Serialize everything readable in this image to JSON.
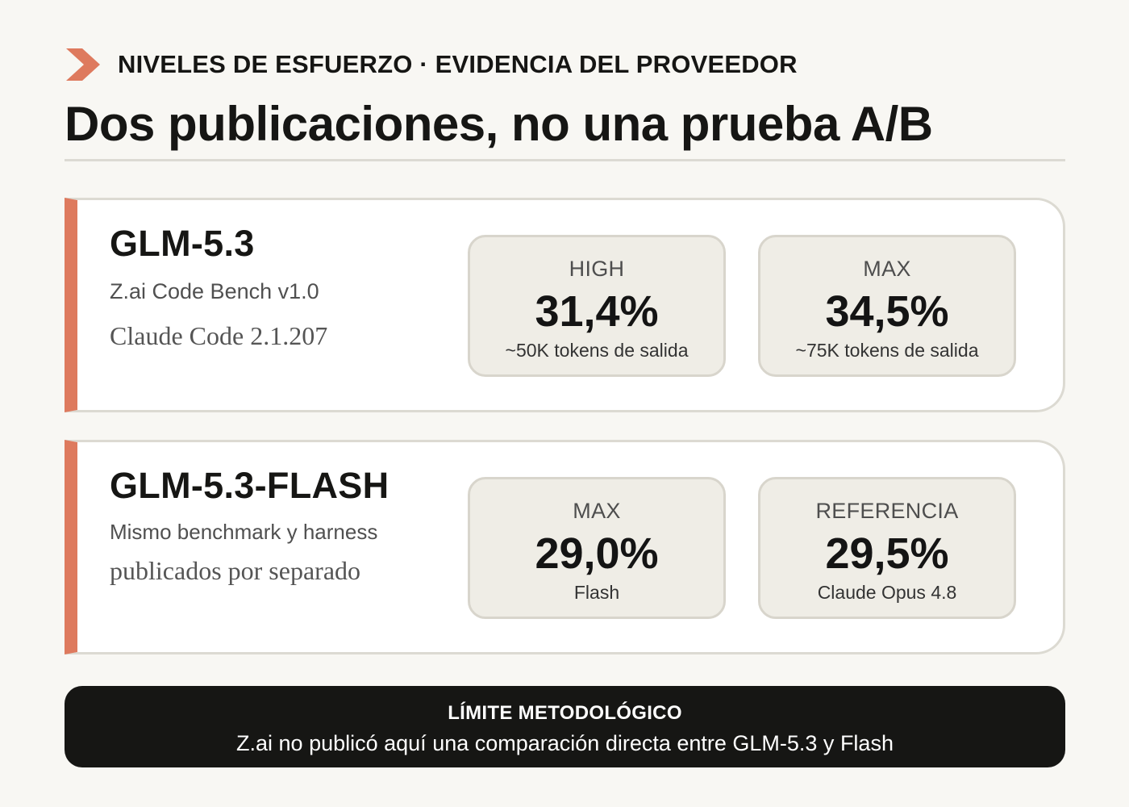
{
  "header": {
    "eyebrow": "NIVELES DE ESFUERZO · EVIDENCIA DEL PROVEEDOR",
    "title": "Dos publicaciones, no una prueba A/B",
    "accent_color": "#de7a5e"
  },
  "cards": [
    {
      "model": "GLM-5.3",
      "line1": "Z.ai Code Bench v1.0",
      "line2": "Claude Code 2.1.207",
      "metrics": [
        {
          "label": "HIGH",
          "value": "31,4%",
          "note": "~50K tokens de salida"
        },
        {
          "label": "MAX",
          "value": "34,5%",
          "note": "~75K tokens de salida"
        }
      ]
    },
    {
      "model": "GLM-5.3-FLASH",
      "line1": "Mismo benchmark y harness",
      "line2": "publicados por separado",
      "metrics": [
        {
          "label": "MAX",
          "value": "29,0%",
          "note": "Flash"
        },
        {
          "label": "REFERENCIA",
          "value": "29,5%",
          "note": "Claude Opus 4.8"
        }
      ]
    }
  ],
  "footer": {
    "heading": "LÍMITE METODOLÓGICO",
    "text": "Z.ai no publicó aquí una comparación directa entre GLM-5.3 y Flash"
  }
}
